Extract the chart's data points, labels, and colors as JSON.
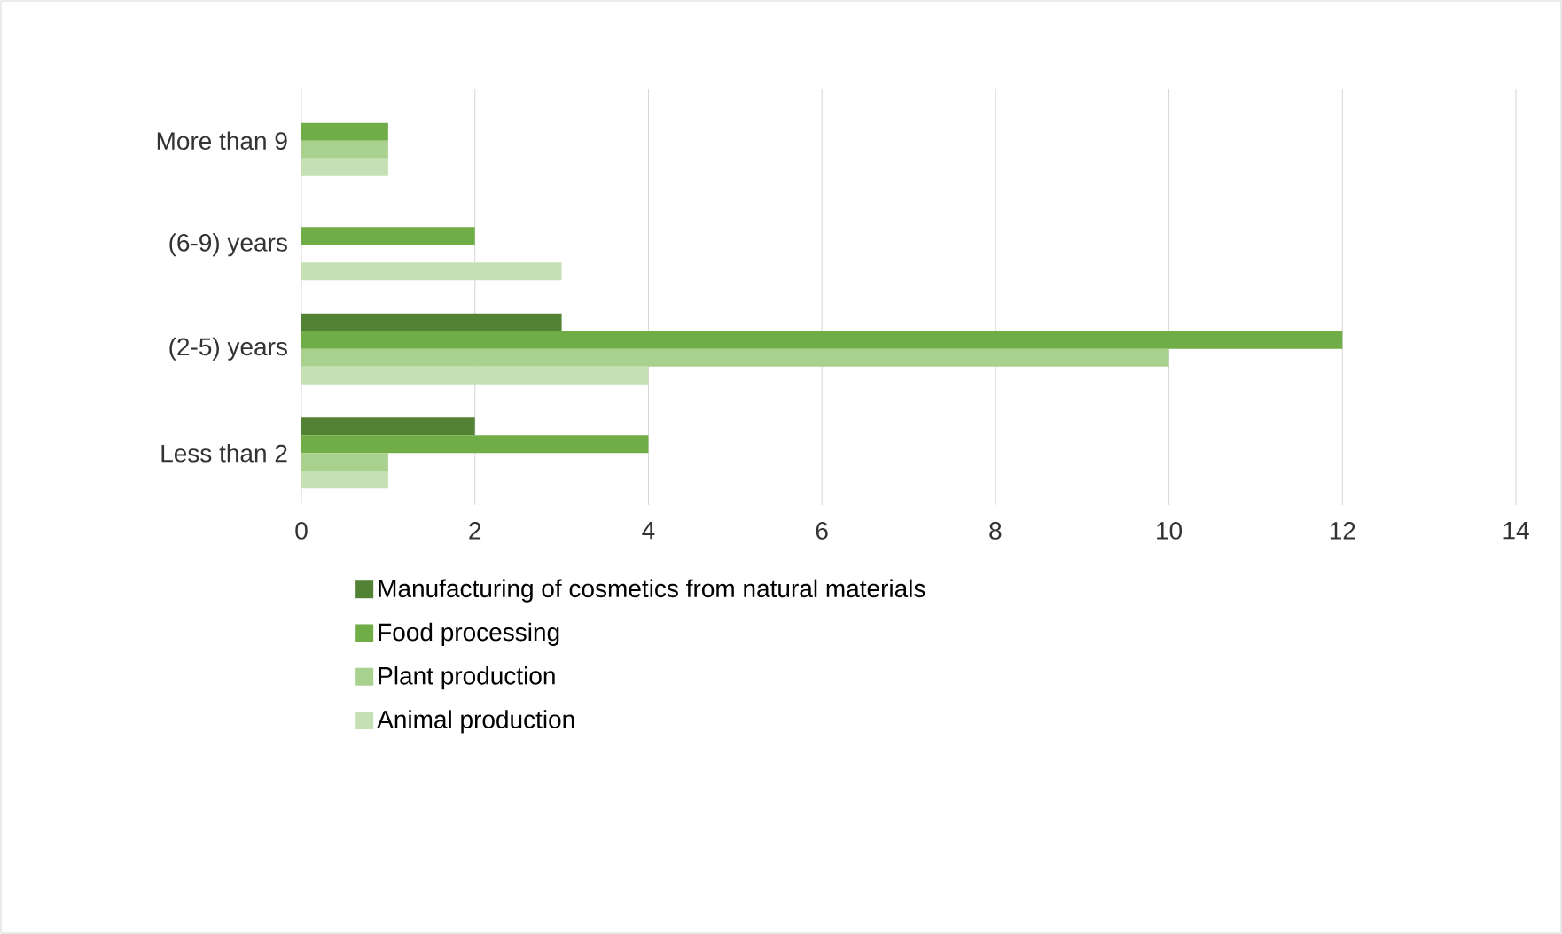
{
  "chart_data": {
    "type": "bar",
    "orientation": "horizontal",
    "categories": [
      "More than 9",
      "(6-9) years",
      "(2-5) years",
      "Less than 2"
    ],
    "series": [
      {
        "name": "Manufacturing of cosmetics from natural materials",
        "color": "#548235",
        "values": [
          0,
          0,
          3,
          2
        ]
      },
      {
        "name": "Food processing",
        "color": "#70ad47",
        "values": [
          1,
          2,
          12,
          4
        ]
      },
      {
        "name": "Plant production",
        "color": "#a9d18e",
        "values": [
          1,
          0,
          10,
          1
        ]
      },
      {
        "name": "Animal production",
        "color": "#c5e0b4",
        "values": [
          1,
          3,
          4,
          1
        ]
      }
    ],
    "xlim": [
      0,
      14
    ],
    "xticks": [
      0,
      2,
      4,
      6,
      8,
      10,
      12,
      14
    ],
    "grid": "x",
    "legend": "bottom"
  }
}
